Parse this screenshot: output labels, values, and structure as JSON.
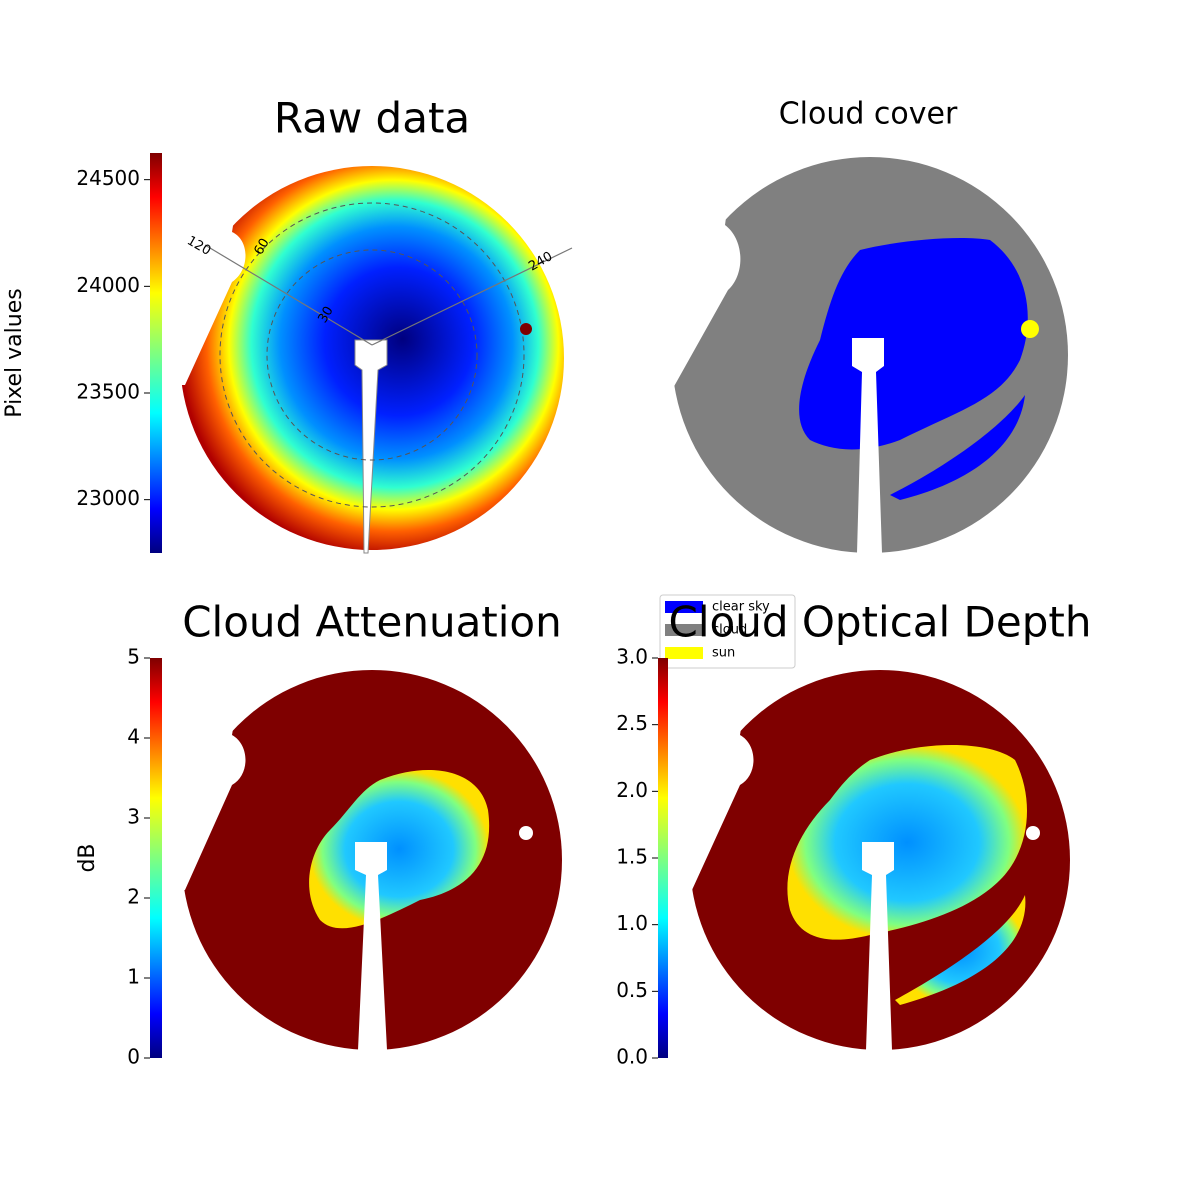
{
  "chart_data": [
    {
      "type": "image",
      "title": "Raw data",
      "ylabel": "Pixel values",
      "ylim": [
        22750,
        24625
      ],
      "yticks": [
        23000,
        23500,
        24000,
        24500
      ],
      "annotations": [
        "120",
        "60",
        "30",
        "240"
      ]
    },
    {
      "type": "image",
      "title": "Cloud cover",
      "legend": {
        "corner": "lower left",
        "series": [
          {
            "name": "clear sky",
            "color": "#0000ff"
          },
          {
            "name": "cloud",
            "color": "#808080"
          },
          {
            "name": "sun",
            "color": "#ffff00"
          }
        ]
      }
    },
    {
      "type": "image",
      "title": "Cloud Attenuation",
      "ylabel": "dB",
      "ylim": [
        0,
        5
      ],
      "yticks": [
        0,
        1,
        2,
        3,
        4,
        5
      ]
    },
    {
      "type": "image",
      "title": "Cloud Optical Depth",
      "ylim": [
        0,
        3
      ],
      "yticks": [
        {
          "value": 0,
          "label": "0.0"
        },
        {
          "value": 0.5,
          "label": "0.5"
        },
        {
          "value": 1,
          "label": "1.0"
        },
        {
          "value": 1.5,
          "label": "1.5"
        },
        {
          "value": 2,
          "label": "2.0"
        },
        {
          "value": 2.5,
          "label": "2.5"
        },
        {
          "value": 3,
          "label": "3.0"
        }
      ]
    }
  ]
}
